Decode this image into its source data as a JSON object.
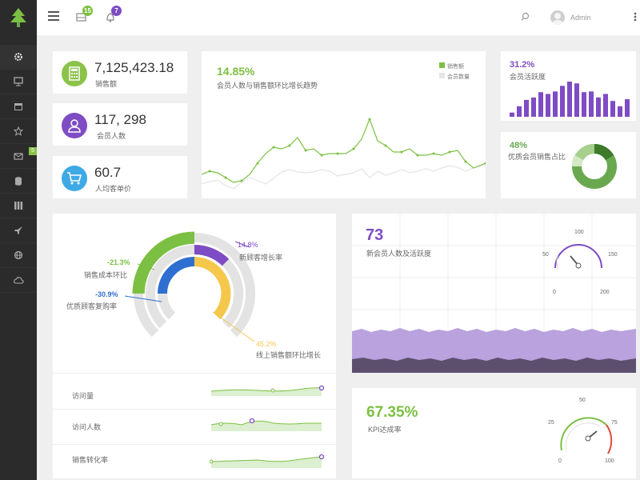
{
  "header": {
    "messages_badge": "15",
    "notifications_badge": "7",
    "user_name": "Admin"
  },
  "sidebar": {
    "items": [
      {
        "icon": "gear-icon"
      },
      {
        "icon": "monitor-icon"
      },
      {
        "icon": "calendar-icon"
      },
      {
        "icon": "star-icon"
      },
      {
        "icon": "mail-icon",
        "badge": "5"
      },
      {
        "icon": "database-icon"
      },
      {
        "icon": "columns-icon"
      },
      {
        "icon": "rocket-icon"
      },
      {
        "icon": "globe-icon"
      },
      {
        "icon": "cloud-icon"
      }
    ]
  },
  "stats": [
    {
      "value": "7,125,423.18",
      "label": "销售额",
      "icon": "calculator-icon",
      "color": "#8bc34a"
    },
    {
      "value": "117, 298",
      "label": "会员人数",
      "icon": "user-icon",
      "color": "#7e4cc4"
    },
    {
      "value": "60.7",
      "label": "人均客单价",
      "icon": "cart-icon",
      "color": "#3fa9e6"
    }
  ],
  "trend": {
    "percent": "14.85%",
    "caption": "会员人数与销售额环比增长趋势",
    "legend": [
      "销售额",
      "会员数量"
    ],
    "colors": [
      "#7cc043",
      "#e6e6e6"
    ]
  },
  "activity": {
    "percent": "31.2%",
    "caption": "会员活跃度",
    "color": "#7e4cc4",
    "bars": [
      0.12,
      0.3,
      0.48,
      0.55,
      0.7,
      0.65,
      0.72,
      0.88,
      1.0,
      0.95,
      0.7,
      0.72,
      0.55,
      0.65,
      0.45,
      0.3,
      0.5
    ]
  },
  "quality": {
    "percent": "48%",
    "caption": "优质会员销售占比",
    "color": "#6aa84f"
  },
  "radial": {
    "rings": [
      {
        "value": "-21.3%",
        "label": "销售成本环比",
        "color": "#7cc043"
      },
      {
        "value": "14.8%",
        "label": "新顾客增长率",
        "color": "#7e4cc4"
      },
      {
        "value": "-30.9%",
        "label": "优质顾客复购率",
        "color": "#2e6fd1"
      },
      {
        "value": "45.2%",
        "label": "线上销售额环比增长",
        "color": "#f5c84c"
      }
    ],
    "rows": [
      {
        "label": "访问量"
      },
      {
        "label": "访问人数"
      },
      {
        "label": "销售转化率"
      }
    ]
  },
  "newmember": {
    "value": "73",
    "caption": "新会员人数及活跃度",
    "color": "#7e4cc4",
    "gauge_ticks": [
      "100",
      "50",
      "150",
      "0",
      "200"
    ]
  },
  "kpi": {
    "percent": "67.35%",
    "caption": "KPI达成率",
    "color": "#7cc043",
    "gauge_ticks": [
      "50",
      "25",
      "75",
      "0",
      "100"
    ]
  }
}
